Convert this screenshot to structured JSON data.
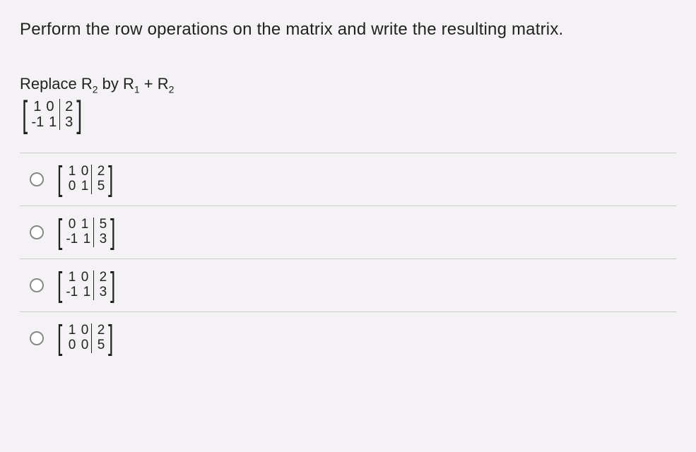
{
  "question": "Perform the row operations on the matrix and write the resulting matrix.",
  "instruction_prefix": "Replace R",
  "instruction_sub1": "2",
  "instruction_mid": " by R",
  "instruction_sub2": "1",
  "instruction_mid2": " + R",
  "instruction_sub3": "2",
  "prompt_matrix": {
    "r1c1": "1",
    "r1c2": "0",
    "r1c3": "2",
    "r2c1": "-1",
    "r2c2": "1",
    "r2c3": "3"
  },
  "options": [
    {
      "r1c1": "1",
      "r1c2": "0",
      "r1c3": "2",
      "r2c1": "0",
      "r2c2": "1",
      "r2c3": "5"
    },
    {
      "r1c1": "0",
      "r1c2": "1",
      "r1c3": "5",
      "r2c1": "-1",
      "r2c2": "1",
      "r2c3": "3"
    },
    {
      "r1c1": "1",
      "r1c2": "0",
      "r1c3": "2",
      "r2c1": "-1",
      "r2c2": "1",
      "r2c3": "3"
    },
    {
      "r1c1": "1",
      "r1c2": "0",
      "r1c3": "2",
      "r2c1": "0",
      "r2c2": "0",
      "r2c3": "5"
    }
  ]
}
